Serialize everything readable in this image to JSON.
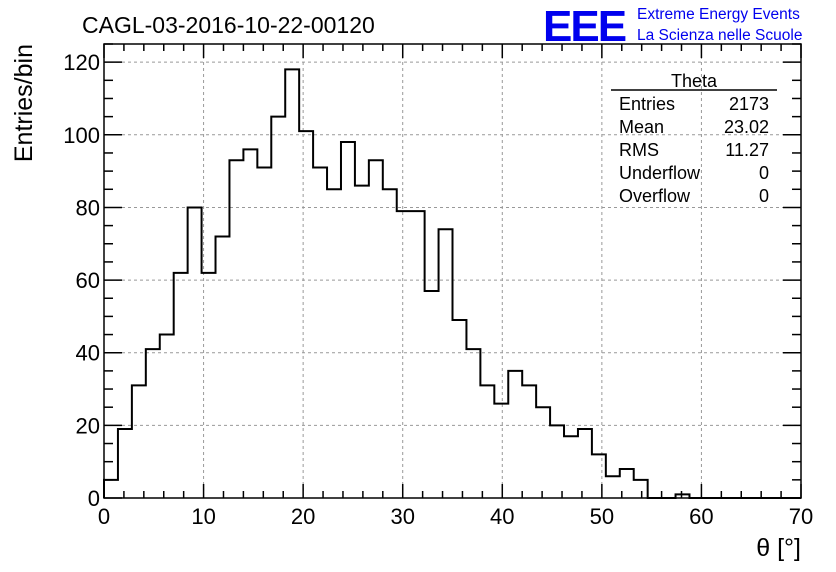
{
  "chart_data": {
    "type": "bar",
    "title": "CAGL-03-2016-10-22-00120",
    "xlabel": "θ [°]",
    "ylabel": "Entries/bin",
    "xlim": [
      0,
      70
    ],
    "ylim": [
      0,
      125
    ],
    "grid": true,
    "bin_width": 1.4,
    "x_ticks": [
      0,
      10,
      20,
      30,
      40,
      50,
      60,
      70
    ],
    "y_ticks": [
      0,
      20,
      40,
      60,
      80,
      100,
      120
    ],
    "values": [
      5,
      19,
      31,
      41,
      45,
      62,
      80,
      62,
      72,
      93,
      96,
      91,
      105,
      118,
      101,
      91,
      85,
      98,
      86,
      93,
      85,
      79,
      79,
      57,
      74,
      49,
      41,
      31,
      26,
      35,
      31,
      25,
      20,
      17,
      19,
      12,
      6,
      8,
      5,
      0,
      0,
      1,
      0,
      0,
      0,
      0,
      0,
      0,
      0,
      0
    ],
    "stats_box": {
      "title": "Theta",
      "position": "top-right",
      "rows": [
        {
          "label": "Entries",
          "value": "2173"
        },
        {
          "label": "Mean",
          "value": "23.02"
        },
        {
          "label": "RMS",
          "value": "11.27"
        },
        {
          "label": "Underflow",
          "value": "0"
        },
        {
          "label": "Overflow",
          "value": "0"
        }
      ]
    }
  },
  "logo": {
    "mark": "EEE",
    "line1": "Extreme Energy Events",
    "line2": "La Scienza nelle Scuole"
  },
  "colors": {
    "histogram_line": "#000000",
    "grid": "#999999",
    "logo": "#0000ee"
  }
}
